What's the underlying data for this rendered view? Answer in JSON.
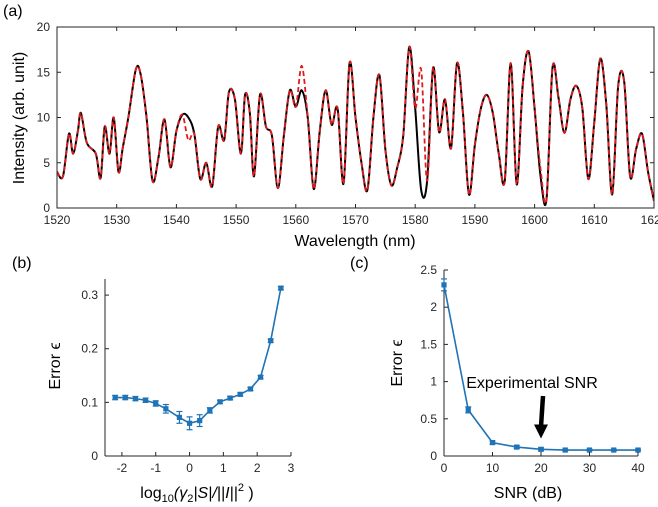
{
  "panels": {
    "a": "(a)",
    "b": "(b)",
    "c": "(c)"
  },
  "colors": {
    "measured": "#000000",
    "reconstructed": "#e31a1c",
    "series": "#1f73b7",
    "axis": "#262626"
  },
  "chart_data": [
    {
      "panel": "a",
      "type": "line",
      "xlabel": "Wavelength (nm)",
      "ylabel": "Intensity (arb. unit)",
      "xlim": [
        1520,
        1620
      ],
      "ylim": [
        0,
        20
      ],
      "xticks": [
        "1520",
        "1530",
        "1540",
        "1550",
        "1560",
        "1570",
        "1580",
        "1590",
        "1600",
        "1610",
        "1620"
      ],
      "yticks": [
        "0",
        "5",
        "10",
        "15",
        "20"
      ],
      "series": [
        {
          "style": "solid",
          "color": "#000000",
          "x": [
            1520,
            1521.0,
            1522.0,
            1522.7,
            1523.5,
            1524.0,
            1525.0,
            1526.5,
            1527.3,
            1528.0,
            1528.8,
            1529.5,
            1530.3,
            1531.0,
            1532.0,
            1533.2,
            1534.0,
            1535.0,
            1536.0,
            1537.0,
            1538.0,
            1539.0,
            1540.0,
            1541.0,
            1542.0,
            1543.0,
            1544.0,
            1545.0,
            1546.0,
            1547.0,
            1548.0,
            1548.8,
            1549.8,
            1550.8,
            1551.5,
            1552.3,
            1553.0,
            1554.0,
            1555.0,
            1556.0,
            1557.0,
            1558.0,
            1559.0,
            1560.0,
            1561.0,
            1562.0,
            1563.0,
            1564.0,
            1565.0,
            1566.0,
            1567.0,
            1568.0,
            1569.0,
            1570.0,
            1571.0,
            1572.0,
            1573.0,
            1574.0,
            1575.0,
            1576.0,
            1577.0,
            1578.0,
            1579.0,
            1580.0,
            1581.0,
            1582.0,
            1583.0,
            1584.0,
            1585.0,
            1586.0,
            1587.0,
            1588.0,
            1589.0,
            1590.0,
            1591.0,
            1592.0,
            1593.0,
            1594.0,
            1595.0,
            1596.0,
            1597.0,
            1598.0,
            1599.0,
            1600.0,
            1601.0,
            1602.0,
            1603.0,
            1604.0,
            1605.0,
            1606.0,
            1607.0,
            1608.0,
            1609.0,
            1610.0,
            1611.0,
            1612.0,
            1613.0,
            1614.0,
            1615.0,
            1616.0,
            1617.0,
            1618.0,
            1619.0,
            1620.0
          ],
          "y": [
            4.0,
            3.5,
            8.2,
            6.0,
            8.5,
            10.5,
            7.2,
            6.0,
            3.3,
            9.0,
            6.0,
            10.0,
            4.0,
            6.6,
            10.2,
            15.3,
            14.8,
            10.0,
            3.0,
            5.6,
            9.8,
            4.5,
            8.5,
            10.3,
            10.0,
            8.2,
            3.2,
            5.0,
            2.4,
            9.0,
            7.5,
            12.8,
            12.0,
            6.0,
            12.5,
            10.5,
            3.5,
            12.5,
            9.0,
            8.0,
            2.2,
            8.0,
            13.0,
            11.2,
            13.0,
            10.0,
            2.1,
            8.4,
            13.0,
            9.2,
            11.0,
            2.7,
            16.0,
            10.0,
            5.0,
            2.0,
            10.0,
            14.7,
            6.5,
            2.5,
            4.5,
            8.0,
            17.8,
            11.0,
            2.0,
            3.0,
            15.5,
            8.4,
            12.0,
            6.6,
            16.0,
            10.5,
            1.5,
            7.0,
            11.0,
            12.5,
            10.5,
            6.0,
            3.0,
            16.0,
            2.6,
            13.5,
            17.3,
            11.0,
            3.5,
            1.0,
            15.5,
            12.2,
            8.3,
            12.0,
            13.5,
            11.0,
            3.2,
            9.5,
            16.5,
            11.5,
            1.5,
            13.5,
            14.0,
            3.5,
            6.5,
            8.2,
            4.0,
            0.8
          ]
        },
        {
          "style": "dashed",
          "color": "#e31a1c",
          "x": [
            1520,
            1521.0,
            1522.0,
            1522.7,
            1523.5,
            1524.0,
            1525.0,
            1526.5,
            1527.3,
            1528.0,
            1528.8,
            1529.5,
            1530.3,
            1531.0,
            1532.0,
            1533.2,
            1534.0,
            1535.0,
            1536.0,
            1537.0,
            1538.0,
            1539.0,
            1540.0,
            1541.0,
            1542.0,
            1543.0,
            1544.0,
            1545.0,
            1546.0,
            1547.0,
            1548.0,
            1548.8,
            1549.8,
            1550.8,
            1551.5,
            1552.3,
            1553.0,
            1554.0,
            1555.0,
            1556.0,
            1557.0,
            1558.0,
            1559.0,
            1560.0,
            1561.0,
            1562.0,
            1563.0,
            1564.0,
            1565.0,
            1566.0,
            1567.0,
            1568.0,
            1569.0,
            1570.0,
            1571.0,
            1572.0,
            1573.0,
            1574.0,
            1575.0,
            1576.0,
            1577.0,
            1578.0,
            1579.0,
            1580.0,
            1581.0,
            1582.0,
            1583.0,
            1584.0,
            1585.0,
            1586.0,
            1587.0,
            1588.0,
            1589.0,
            1590.0,
            1591.0,
            1592.0,
            1593.0,
            1594.0,
            1595.0,
            1596.0,
            1597.0,
            1598.0,
            1599.0,
            1600.0,
            1601.0,
            1602.0,
            1603.0,
            1604.0,
            1605.0,
            1606.0,
            1607.0,
            1608.0,
            1609.0,
            1610.0,
            1611.0,
            1612.0,
            1613.0,
            1614.0,
            1615.0,
            1616.0,
            1617.0,
            1618.0,
            1619.0,
            1620.0
          ],
          "y": [
            4.0,
            3.5,
            8.2,
            6.0,
            8.5,
            10.5,
            7.2,
            6.0,
            3.3,
            9.0,
            6.0,
            10.0,
            4.0,
            6.6,
            10.2,
            15.3,
            14.8,
            10.0,
            3.0,
            5.6,
            9.8,
            4.5,
            8.5,
            10.3,
            7.5,
            8.2,
            3.2,
            5.0,
            2.4,
            9.0,
            7.5,
            12.8,
            12.0,
            6.0,
            12.5,
            10.5,
            3.5,
            12.5,
            9.0,
            8.0,
            2.2,
            8.0,
            13.0,
            11.2,
            15.7,
            10.0,
            2.1,
            8.4,
            13.0,
            9.2,
            11.0,
            2.7,
            16.0,
            10.0,
            5.0,
            2.0,
            10.0,
            14.7,
            6.5,
            2.5,
            4.5,
            8.0,
            17.8,
            11.0,
            15.3,
            3.0,
            15.5,
            8.4,
            12.0,
            6.6,
            16.0,
            10.5,
            1.5,
            7.0,
            11.0,
            12.5,
            10.5,
            6.0,
            3.0,
            16.0,
            2.6,
            13.5,
            17.3,
            11.0,
            4.3,
            1.0,
            15.5,
            12.2,
            8.3,
            12.0,
            13.5,
            11.0,
            3.2,
            9.5,
            16.5,
            11.5,
            1.5,
            13.5,
            14.0,
            3.5,
            6.5,
            8.2,
            4.0,
            0.8
          ]
        }
      ]
    },
    {
      "panel": "b",
      "type": "line",
      "xlabel": "log10(γ2|S|/||I||2)",
      "xlabel_parts": {
        "log": "log",
        "sub10": "10",
        "body": "(γ",
        "sub2": "2",
        "rest": "|S|/||I||",
        "sup": "2",
        "close": " )"
      },
      "ylabel": "Error ϵ",
      "xlim": [
        -2.5,
        3
      ],
      "ylim": [
        0,
        0.33
      ],
      "xticks": [
        "-2",
        "-1",
        "0",
        "1",
        "2",
        "3"
      ],
      "yticks": [
        "0",
        "0.1",
        "0.2",
        "0.3"
      ],
      "series": [
        {
          "marker": "square",
          "x": [
            -2.2,
            -1.9,
            -1.6,
            -1.3,
            -1.0,
            -0.7,
            -0.3,
            0.0,
            0.3,
            0.6,
            0.9,
            1.2,
            1.5,
            1.8,
            2.1,
            2.4,
            2.7
          ],
          "y": [
            0.109,
            0.109,
            0.107,
            0.104,
            0.098,
            0.088,
            0.072,
            0.061,
            0.066,
            0.085,
            0.101,
            0.108,
            0.115,
            0.125,
            0.147,
            0.215,
            0.313
          ],
          "err": [
            0.004,
            0.004,
            0.004,
            0.004,
            0.005,
            0.008,
            0.011,
            0.012,
            0.011,
            0.005,
            0.003,
            0.003,
            0.003,
            0.003,
            0.003,
            0.003,
            0.003
          ]
        }
      ]
    },
    {
      "panel": "c",
      "type": "line",
      "xlabel": "SNR (dB)",
      "ylabel": "Error ϵ",
      "xlim": [
        0,
        40
      ],
      "ylim": [
        0,
        2.5
      ],
      "xticks": [
        "0",
        "10",
        "20",
        "30",
        "40"
      ],
      "yticks": [
        "0",
        "0.5",
        "1",
        "1.5",
        "2",
        "2.5"
      ],
      "annotation": {
        "text": "Experimental SNR",
        "target_x": 20,
        "target_y": 0.1
      },
      "series": [
        {
          "marker": "square",
          "x": [
            0,
            5,
            10,
            15,
            20,
            25,
            30,
            35,
            40
          ],
          "y": [
            2.3,
            0.62,
            0.18,
            0.12,
            0.09,
            0.08,
            0.08,
            0.08,
            0.08
          ],
          "err": [
            0.08,
            0.04,
            0.02,
            0.02,
            0.02,
            0.01,
            0.01,
            0.01,
            0.01
          ]
        }
      ]
    }
  ]
}
